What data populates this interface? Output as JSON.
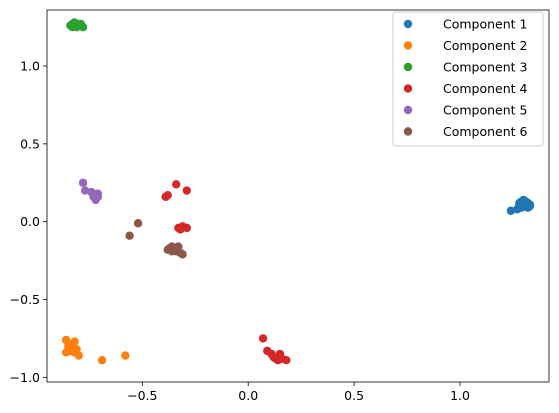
{
  "chart_data": {
    "type": "scatter",
    "xlim": [
      -0.95,
      1.42
    ],
    "ylim": [
      -1.03,
      1.36
    ],
    "xticks": [
      -0.5,
      0.0,
      0.5,
      1.0
    ],
    "yticks": [
      -1.0,
      -0.5,
      0.0,
      0.5,
      1.0
    ],
    "xtick_labels": [
      "−0.5",
      "0.0",
      "0.5",
      "1.0"
    ],
    "ytick_labels": [
      "−1.0",
      "−0.5",
      "0.0",
      "0.5",
      "1.0"
    ],
    "grid": false,
    "legend_position": "top-right",
    "series": [
      {
        "name": "Component 1",
        "color": "#1f77b4",
        "points": [
          [
            1.24,
            0.07
          ],
          [
            1.27,
            0.08
          ],
          [
            1.28,
            0.1
          ],
          [
            1.28,
            0.12
          ],
          [
            1.29,
            0.13
          ],
          [
            1.3,
            0.12
          ],
          [
            1.3,
            0.1
          ],
          [
            1.31,
            0.13
          ],
          [
            1.31,
            0.11
          ],
          [
            1.32,
            0.09
          ],
          [
            1.32,
            0.12
          ],
          [
            1.33,
            0.1
          ],
          [
            1.33,
            0.11
          ],
          [
            1.29,
            0.09
          ],
          [
            1.3,
            0.14
          ]
        ]
      },
      {
        "name": "Component 2",
        "color": "#ff7f0e",
        "points": [
          [
            -0.86,
            -0.76
          ],
          [
            -0.86,
            -0.84
          ],
          [
            -0.85,
            -0.8
          ],
          [
            -0.84,
            -0.83
          ],
          [
            -0.83,
            -0.79
          ],
          [
            -0.82,
            -0.77
          ],
          [
            -0.82,
            -0.84
          ],
          [
            -0.81,
            -0.82
          ],
          [
            -0.8,
            -0.86
          ],
          [
            -0.84,
            -0.81
          ],
          [
            -0.69,
            -0.89
          ],
          [
            -0.58,
            -0.86
          ]
        ]
      },
      {
        "name": "Component 3",
        "color": "#2ca02c",
        "points": [
          [
            -0.84,
            1.26
          ],
          [
            -0.83,
            1.27
          ],
          [
            -0.82,
            1.28
          ],
          [
            -0.81,
            1.26
          ],
          [
            -0.81,
            1.25
          ],
          [
            -0.8,
            1.27
          ],
          [
            -0.79,
            1.26
          ],
          [
            -0.78,
            1.25
          ],
          [
            -0.83,
            1.25
          ],
          [
            -0.8,
            1.26
          ],
          [
            -0.82,
            1.27
          ],
          [
            -0.79,
            1.27
          ]
        ]
      },
      {
        "name": "Component 4",
        "color": "#d62728",
        "points": [
          [
            -0.39,
            0.16
          ],
          [
            -0.38,
            0.17
          ],
          [
            -0.34,
            0.24
          ],
          [
            -0.31,
            -0.03
          ],
          [
            -0.32,
            -0.05
          ],
          [
            -0.33,
            -0.04
          ],
          [
            -0.29,
            -0.04
          ],
          [
            -0.29,
            0.2
          ],
          [
            0.07,
            -0.75
          ],
          [
            0.09,
            -0.83
          ],
          [
            0.11,
            -0.85
          ],
          [
            0.12,
            -0.87
          ],
          [
            0.13,
            -0.88
          ],
          [
            0.15,
            -0.86
          ],
          [
            0.16,
            -0.88
          ],
          [
            0.18,
            -0.89
          ],
          [
            0.14,
            -0.89
          ],
          [
            0.15,
            -0.85
          ]
        ]
      },
      {
        "name": "Component 5",
        "color": "#9467bd",
        "points": [
          [
            -0.78,
            0.25
          ],
          [
            -0.77,
            0.2
          ],
          [
            -0.74,
            0.19
          ],
          [
            -0.73,
            0.18
          ],
          [
            -0.72,
            0.17
          ],
          [
            -0.72,
            0.15
          ],
          [
            -0.72,
            0.14
          ],
          [
            -0.71,
            0.16
          ],
          [
            -0.73,
            0.16
          ],
          [
            -0.71,
            0.18
          ]
        ]
      },
      {
        "name": "Component 6",
        "color": "#8c564b",
        "points": [
          [
            -0.56,
            -0.09
          ],
          [
            -0.52,
            -0.01
          ],
          [
            -0.38,
            -0.18
          ],
          [
            -0.37,
            -0.17
          ],
          [
            -0.36,
            -0.16
          ],
          [
            -0.35,
            -0.18
          ],
          [
            -0.34,
            -0.19
          ],
          [
            -0.33,
            -0.16
          ],
          [
            -0.32,
            -0.2
          ],
          [
            -0.31,
            -0.21
          ],
          [
            -0.36,
            -0.19
          ]
        ]
      }
    ]
  }
}
